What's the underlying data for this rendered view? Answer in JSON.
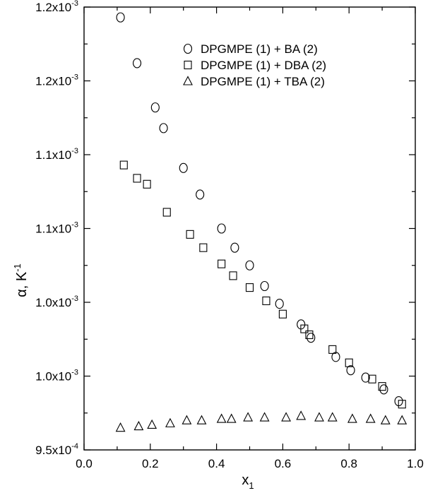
{
  "chart_data": {
    "type": "scatter",
    "title": "",
    "xlabel": "x",
    "xlabel_subscript": "1",
    "ylabel": "α, K",
    "ylabel_superscript": "-1",
    "xlim": [
      0.0,
      1.0
    ],
    "ylim": [
      0.00095,
      0.00125
    ],
    "x_ticks": [
      {
        "value": 0.0,
        "label": "0.0"
      },
      {
        "value": 0.2,
        "label": "0.2"
      },
      {
        "value": 0.4,
        "label": "0.4"
      },
      {
        "value": 0.6,
        "label": "0.6"
      },
      {
        "value": 0.8,
        "label": "0.8"
      },
      {
        "value": 1.0,
        "label": "1.0"
      }
    ],
    "y_ticks": [
      {
        "value": 0.00095,
        "mantissa": "9.5x10",
        "exponent": "-4"
      },
      {
        "value": 0.001,
        "mantissa": "1.0x10",
        "exponent": "-3"
      },
      {
        "value": 0.00105,
        "mantissa": "1.0x10",
        "exponent": "-3"
      },
      {
        "value": 0.0011,
        "mantissa": "1.1x10",
        "exponent": "-3"
      },
      {
        "value": 0.00115,
        "mantissa": "1.1x10",
        "exponent": "-3"
      },
      {
        "value": 0.0012,
        "mantissa": "1.2x10",
        "exponent": "-3"
      },
      {
        "value": 0.00125,
        "mantissa": "1.2x10",
        "exponent": "-3"
      }
    ],
    "grid": false,
    "legend_position": "top-center",
    "series": [
      {
        "name": "DPGMPE (1) + BA (2)",
        "marker": "circle",
        "points": [
          {
            "x": 0.11,
            "y": 0.001243
          },
          {
            "x": 0.16,
            "y": 0.001212
          },
          {
            "x": 0.215,
            "y": 0.001182
          },
          {
            "x": 0.24,
            "y": 0.001168
          },
          {
            "x": 0.3,
            "y": 0.001141
          },
          {
            "x": 0.35,
            "y": 0.001123
          },
          {
            "x": 0.415,
            "y": 0.0011
          },
          {
            "x": 0.455,
            "y": 0.001087
          },
          {
            "x": 0.5,
            "y": 0.001075
          },
          {
            "x": 0.545,
            "y": 0.001061
          },
          {
            "x": 0.59,
            "y": 0.001049
          },
          {
            "x": 0.655,
            "y": 0.001035
          },
          {
            "x": 0.685,
            "y": 0.001026
          },
          {
            "x": 0.76,
            "y": 0.001013
          },
          {
            "x": 0.805,
            "y": 0.001004
          },
          {
            "x": 0.85,
            "y": 0.000999
          },
          {
            "x": 0.905,
            "y": 0.000991
          },
          {
            "x": 0.95,
            "y": 0.000983
          }
        ]
      },
      {
        "name": "DPGMPE (1) + DBA (2)",
        "marker": "square",
        "points": [
          {
            "x": 0.12,
            "y": 0.001143
          },
          {
            "x": 0.16,
            "y": 0.001134
          },
          {
            "x": 0.19,
            "y": 0.00113
          },
          {
            "x": 0.25,
            "y": 0.001111
          },
          {
            "x": 0.32,
            "y": 0.001096
          },
          {
            "x": 0.36,
            "y": 0.001087
          },
          {
            "x": 0.415,
            "y": 0.001076
          },
          {
            "x": 0.45,
            "y": 0.001068
          },
          {
            "x": 0.5,
            "y": 0.00106
          },
          {
            "x": 0.55,
            "y": 0.001051
          },
          {
            "x": 0.6,
            "y": 0.001042
          },
          {
            "x": 0.665,
            "y": 0.001032
          },
          {
            "x": 0.68,
            "y": 0.001028
          },
          {
            "x": 0.75,
            "y": 0.001018
          },
          {
            "x": 0.8,
            "y": 0.001009
          },
          {
            "x": 0.87,
            "y": 0.000998
          },
          {
            "x": 0.9,
            "y": 0.000993
          },
          {
            "x": 0.96,
            "y": 0.000981
          }
        ]
      },
      {
        "name": "DPGMPE (1) + TBA (2)",
        "marker": "triangle",
        "points": [
          {
            "x": 0.11,
            "y": 0.000965
          },
          {
            "x": 0.165,
            "y": 0.000966
          },
          {
            "x": 0.205,
            "y": 0.000967
          },
          {
            "x": 0.26,
            "y": 0.000968
          },
          {
            "x": 0.31,
            "y": 0.00097
          },
          {
            "x": 0.355,
            "y": 0.00097
          },
          {
            "x": 0.415,
            "y": 0.000971
          },
          {
            "x": 0.445,
            "y": 0.000971
          },
          {
            "x": 0.495,
            "y": 0.000972
          },
          {
            "x": 0.545,
            "y": 0.000972
          },
          {
            "x": 0.61,
            "y": 0.000972
          },
          {
            "x": 0.655,
            "y": 0.000973
          },
          {
            "x": 0.71,
            "y": 0.000972
          },
          {
            "x": 0.75,
            "y": 0.000972
          },
          {
            "x": 0.81,
            "y": 0.000971
          },
          {
            "x": 0.865,
            "y": 0.000971
          },
          {
            "x": 0.91,
            "y": 0.00097
          },
          {
            "x": 0.96,
            "y": 0.00097
          }
        ]
      }
    ]
  }
}
